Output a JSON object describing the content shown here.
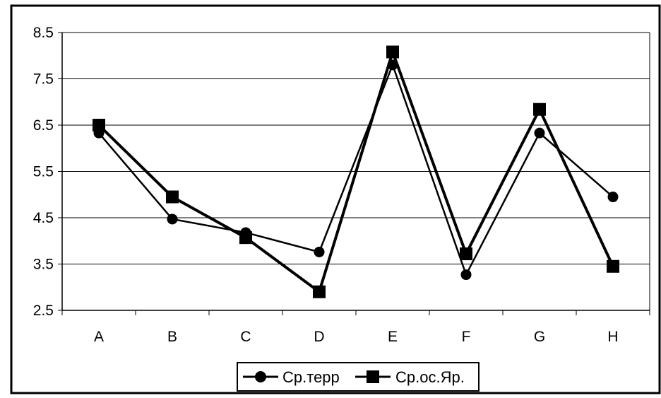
{
  "chart_data": {
    "type": "line",
    "title": "",
    "xlabel": "",
    "ylabel": "",
    "categories": [
      "A",
      "B",
      "C",
      "D",
      "E",
      "F",
      "G",
      "H"
    ],
    "ylim": [
      2.5,
      8.5
    ],
    "yticks": [
      "2.5",
      "3.5",
      "4.5",
      "5.5",
      "6.5",
      "7.5",
      "8.5"
    ],
    "grid": true,
    "legend_position": "bottom",
    "series": [
      {
        "name": "Ср.терр",
        "marker": "circle",
        "values": [
          6.33,
          4.47,
          4.18,
          3.76,
          7.8,
          3.27,
          6.33,
          4.95
        ]
      },
      {
        "name": "Ср.ос.Яр.",
        "marker": "square",
        "values": [
          6.5,
          4.95,
          4.07,
          2.9,
          8.08,
          3.72,
          6.84,
          3.45
        ]
      }
    ],
    "colors": {
      "line": "#000000",
      "grid": "#000000",
      "background": "#ffffff"
    }
  }
}
